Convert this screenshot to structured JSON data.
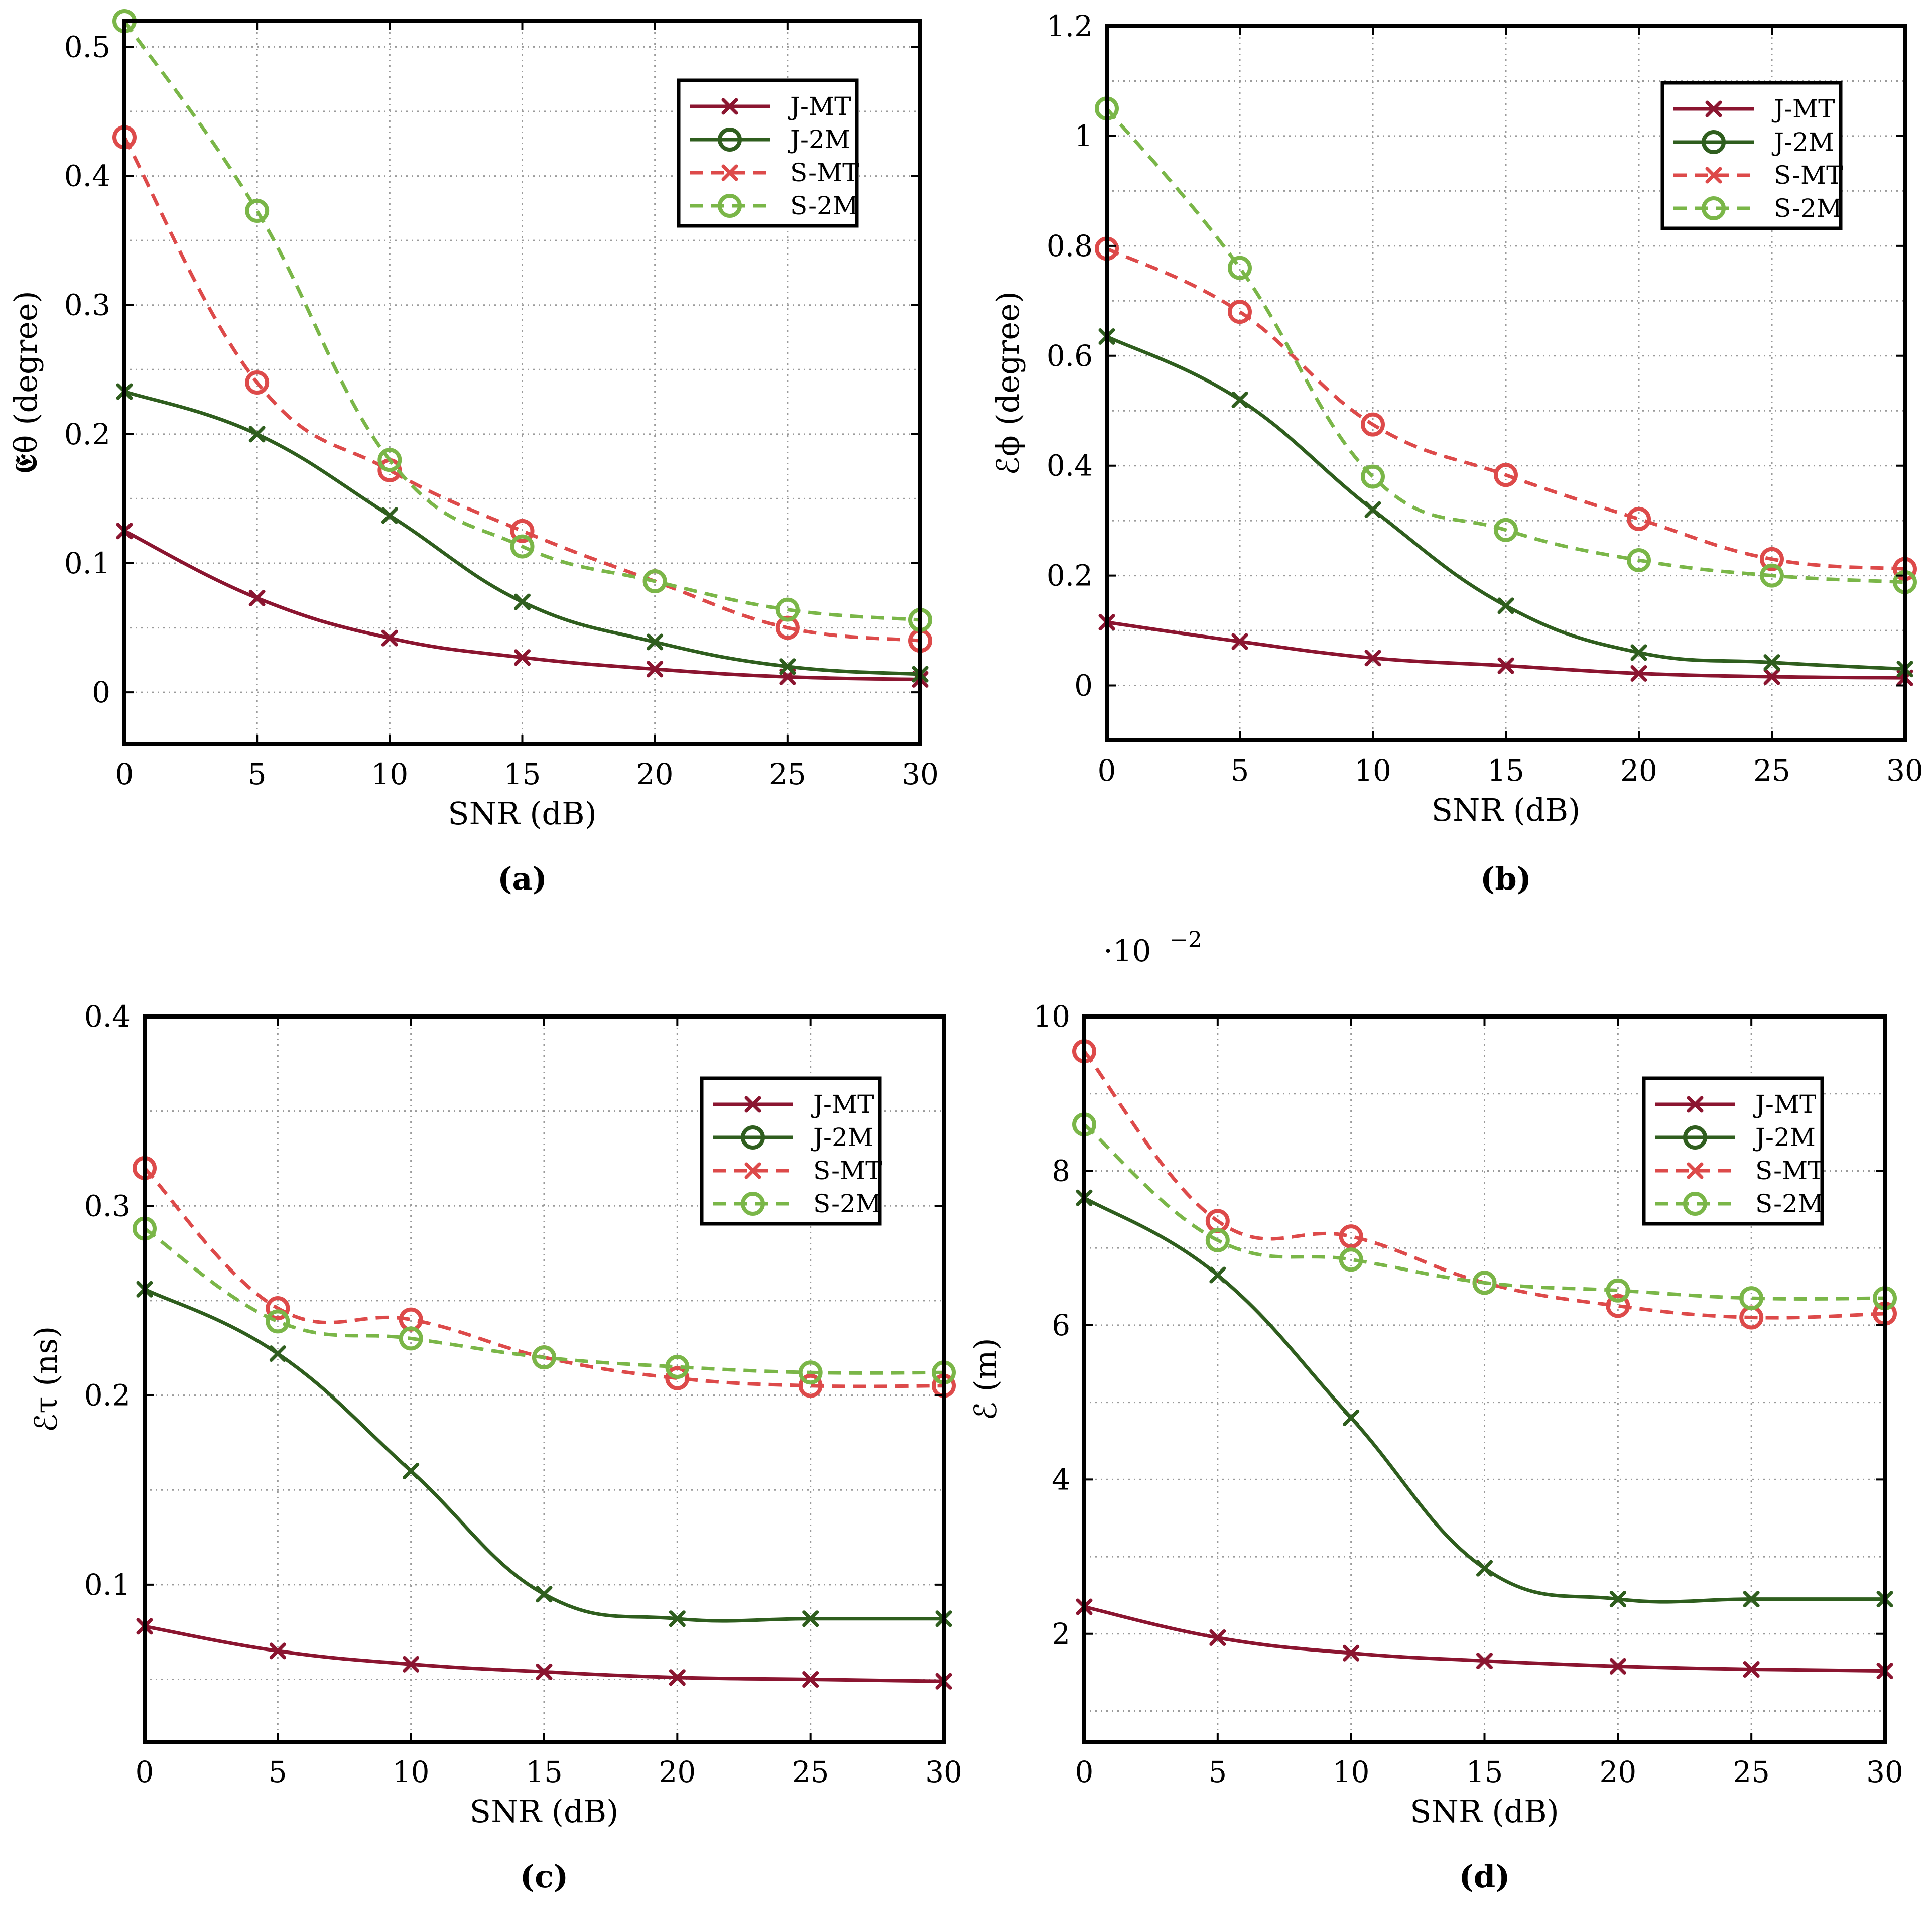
{
  "colors": {
    "J-MT": "#8b1530",
    "J-2M": "#2f5e1e",
    "S-MT": "#dd4a4a",
    "S-2M": "#7ab648"
  },
  "chart_data": [
    {
      "type": "line",
      "caption": "(a)",
      "xlabel": "SNR (dB)",
      "ylabel": "𝕰θ (degree)",
      "xlim": [
        0,
        30
      ],
      "ylim": [
        -0.04,
        0.52
      ],
      "xticks": [
        0,
        5,
        10,
        15,
        20,
        25,
        30
      ],
      "yticks": [
        0,
        0.1,
        0.2,
        0.3,
        0.4,
        0.5
      ],
      "ytick_labels": [
        "0",
        "0.1",
        "0.2",
        "0.3",
        "0.4",
        "0.5"
      ],
      "grid": true,
      "legend_position": "top-right",
      "x": [
        0,
        5,
        10,
        15,
        20,
        25,
        30
      ],
      "series": [
        {
          "name": "J-MT",
          "values": [
            0.125,
            0.073,
            0.042,
            0.027,
            0.018,
            0.012,
            0.01
          ]
        },
        {
          "name": "J-2M",
          "values": [
            0.233,
            0.2,
            0.137,
            0.07,
            0.039,
            0.02,
            0.014
          ]
        },
        {
          "name": "S-MT",
          "values": [
            0.43,
            0.24,
            0.172,
            0.125,
            0.086,
            0.05,
            0.04
          ]
        },
        {
          "name": "S-2M",
          "values": [
            0.52,
            0.373,
            0.18,
            0.113,
            0.086,
            0.064,
            0.056
          ]
        }
      ]
    },
    {
      "type": "line",
      "caption": "(b)",
      "xlabel": "SNR (dB)",
      "ylabel": "ℰϕ (degree)",
      "xlim": [
        0,
        30
      ],
      "ylim": [
        -0.1,
        1.2
      ],
      "xticks": [
        0,
        5,
        10,
        15,
        20,
        25,
        30
      ],
      "yticks": [
        0,
        0.2,
        0.4,
        0.6,
        0.8,
        1.0,
        1.2
      ],
      "ytick_labels": [
        "0",
        "0.2",
        "0.4",
        "0.6",
        "0.8",
        "1",
        "1.2"
      ],
      "grid": true,
      "legend_position": "top-right",
      "x": [
        0,
        5,
        10,
        15,
        20,
        25,
        30
      ],
      "series": [
        {
          "name": "J-MT",
          "values": [
            0.115,
            0.08,
            0.05,
            0.036,
            0.022,
            0.016,
            0.014
          ]
        },
        {
          "name": "J-2M",
          "values": [
            0.635,
            0.52,
            0.32,
            0.145,
            0.06,
            0.042,
            0.03
          ]
        },
        {
          "name": "S-MT",
          "values": [
            0.795,
            0.68,
            0.475,
            0.383,
            0.303,
            0.23,
            0.212
          ]
        },
        {
          "name": "S-2M",
          "values": [
            1.05,
            0.76,
            0.38,
            0.283,
            0.228,
            0.2,
            0.188
          ]
        }
      ]
    },
    {
      "type": "line",
      "caption": "(c)",
      "xlabel": "SNR (dB)",
      "ylabel": "ℰτ (ns)",
      "xlim": [
        0,
        30
      ],
      "ylim": [
        0.017,
        0.4
      ],
      "xticks": [
        0,
        5,
        10,
        15,
        20,
        25,
        30
      ],
      "yticks": [
        0.1,
        0.2,
        0.3,
        0.4
      ],
      "ytick_labels": [
        "0.1",
        "0.2",
        "0.3",
        "0.4"
      ],
      "grid": true,
      "legend_position": "top-right",
      "x": [
        0,
        5,
        10,
        15,
        20,
        25,
        30
      ],
      "series": [
        {
          "name": "J-MT",
          "values": [
            0.078,
            0.065,
            0.058,
            0.054,
            0.051,
            0.05,
            0.049
          ]
        },
        {
          "name": "J-2M",
          "values": [
            0.256,
            0.222,
            0.16,
            0.095,
            0.082,
            0.082,
            0.082
          ]
        },
        {
          "name": "S-MT",
          "values": [
            0.32,
            0.246,
            0.24,
            0.22,
            0.209,
            0.205,
            0.205
          ]
        },
        {
          "name": "S-2M",
          "values": [
            0.288,
            0.239,
            0.23,
            0.22,
            0.215,
            0.212,
            0.212
          ]
        }
      ]
    },
    {
      "type": "line",
      "caption": "(d)",
      "xlabel": "SNR (dB)",
      "ylabel": "ℰ (m)",
      "scale_label": "·10",
      "scale_exponent": "−2",
      "xlim": [
        0,
        30
      ],
      "ylim": [
        0.6,
        10
      ],
      "xticks": [
        0,
        5,
        10,
        15,
        20,
        25,
        30
      ],
      "yticks": [
        2,
        4,
        6,
        8,
        10
      ],
      "ytick_labels": [
        "2",
        "4",
        "6",
        "8",
        "10"
      ],
      "grid": true,
      "legend_position": "top-right",
      "x": [
        0,
        5,
        10,
        15,
        20,
        25,
        30
      ],
      "series": [
        {
          "name": "J-MT",
          "values": [
            2.35,
            1.95,
            1.75,
            1.65,
            1.58,
            1.54,
            1.52
          ]
        },
        {
          "name": "J-2M",
          "values": [
            7.65,
            6.65,
            4.8,
            2.85,
            2.45,
            2.45,
            2.45
          ]
        },
        {
          "name": "S-MT",
          "values": [
            9.55,
            7.35,
            7.15,
            6.55,
            6.25,
            6.1,
            6.15
          ]
        },
        {
          "name": "S-2M",
          "values": [
            8.6,
            7.1,
            6.85,
            6.55,
            6.45,
            6.35,
            6.35
          ]
        }
      ]
    }
  ]
}
